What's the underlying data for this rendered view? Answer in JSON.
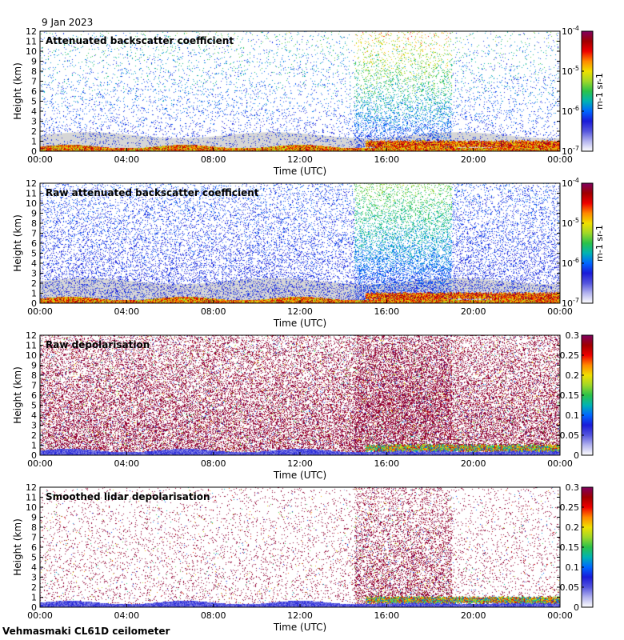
{
  "date_label": "9 Jan 2023",
  "footer": "Vehmasmaki CL61D ceilometer",
  "colors": {
    "background": "#ffffff",
    "no_signal_gray": "#d6d6d6",
    "colormap": [
      "#ffffff",
      "#b3b3ee",
      "#5555dd",
      "#1a1ad8",
      "#0066ff",
      "#00b3b3",
      "#2ac24a",
      "#a0d828",
      "#f0e000",
      "#ff8800",
      "#ee0000",
      "#a00000",
      "#800060"
    ]
  },
  "chart_data": [
    {
      "type": "heatmap",
      "title": "Attenuated backscatter coefficient",
      "xlabel": "Time (UTC)",
      "ylabel": "Height (km)",
      "x_ticks": [
        "00:00",
        "04:00",
        "08:00",
        "12:00",
        "16:00",
        "20:00",
        "00:00"
      ],
      "y_ticks": [
        "0",
        "1",
        "2",
        "3",
        "4",
        "5",
        "6",
        "7",
        "8",
        "9",
        "10",
        "11",
        "12"
      ],
      "ylim": [
        0,
        12
      ],
      "xlim_hours": [
        0,
        24
      ],
      "colorbar": {
        "scale": "log",
        "range": [
          1e-07,
          0.0001
        ],
        "ticks": [
          "10^-7",
          "10^-6",
          "10^-5",
          "10^-4"
        ],
        "unit": "m-1 sr-1"
      },
      "features": {
        "low_layer_top_km": 0.6,
        "boundary_layer_top_km": 1.2,
        "cloud_base_start_hour": 15,
        "cloud_base_km": 1.0,
        "enhanced_signal_hours": [
          14.5,
          19
        ],
        "noise_level": "medium"
      }
    },
    {
      "type": "heatmap",
      "title": "Raw attenuated backscatter coefficient",
      "xlabel": "Time (UTC)",
      "ylabel": "Height (km)",
      "x_ticks": [
        "00:00",
        "04:00",
        "08:00",
        "12:00",
        "16:00",
        "20:00",
        "00:00"
      ],
      "y_ticks": [
        "0",
        "1",
        "2",
        "3",
        "4",
        "5",
        "6",
        "7",
        "8",
        "9",
        "10",
        "11",
        "12"
      ],
      "ylim": [
        0,
        12
      ],
      "xlim_hours": [
        0,
        24
      ],
      "colorbar": {
        "scale": "log",
        "range": [
          1e-07,
          0.0001
        ],
        "ticks": [
          "10^-7",
          "10^-6",
          "10^-5",
          "10^-4"
        ],
        "unit": "m-1 sr-1"
      },
      "features": {
        "low_layer_top_km": 0.6,
        "boundary_layer_top_km": 1.2,
        "cloud_base_start_hour": 15,
        "cloud_base_km": 1.0,
        "enhanced_signal_hours": [
          14.5,
          19
        ],
        "noise_level": "high"
      }
    },
    {
      "type": "heatmap",
      "title": "Raw depolarisation",
      "xlabel": "Time (UTC)",
      "ylabel": "Height (km)",
      "x_ticks": [
        "00:00",
        "04:00",
        "08:00",
        "12:00",
        "16:00",
        "20:00",
        "00:00"
      ],
      "y_ticks": [
        "0",
        "1",
        "2",
        "3",
        "4",
        "5",
        "6",
        "7",
        "8",
        "9",
        "10",
        "11",
        "12"
      ],
      "ylim": [
        0,
        12
      ],
      "xlim_hours": [
        0,
        24
      ],
      "colorbar": {
        "scale": "linear",
        "range": [
          0,
          0.3
        ],
        "ticks": [
          "0",
          "0.05",
          "0.1",
          "0.15",
          "0.2",
          "0.25",
          "0.3"
        ],
        "unit": ""
      },
      "features": {
        "low_layer_top_km": 0.6,
        "boundary_layer_top_km": 1.2,
        "cloud_base_start_hour": 15,
        "cloud_base_km": 1.0,
        "enhanced_signal_hours": [
          14.5,
          19
        ],
        "noise_level": "very high"
      }
    },
    {
      "type": "heatmap",
      "title": "Smoothed lidar depolarisation",
      "xlabel": "Time (UTC)",
      "ylabel": "Height (km)",
      "x_ticks": [
        "00:00",
        "04:00",
        "08:00",
        "12:00",
        "16:00",
        "20:00",
        "00:00"
      ],
      "y_ticks": [
        "0",
        "1",
        "2",
        "3",
        "4",
        "5",
        "6",
        "7",
        "8",
        "9",
        "10",
        "11",
        "12"
      ],
      "ylim": [
        0,
        12
      ],
      "xlim_hours": [
        0,
        24
      ],
      "colorbar": {
        "scale": "linear",
        "range": [
          0,
          0.3
        ],
        "ticks": [
          "0",
          "0.05",
          "0.1",
          "0.15",
          "0.2",
          "0.25",
          "0.3"
        ],
        "unit": ""
      },
      "features": {
        "low_layer_top_km": 0.6,
        "boundary_layer_top_km": 1.2,
        "cloud_base_start_hour": 15,
        "cloud_base_km": 1.0,
        "enhanced_signal_hours": [
          14.5,
          19
        ],
        "noise_level": "medium"
      }
    }
  ]
}
